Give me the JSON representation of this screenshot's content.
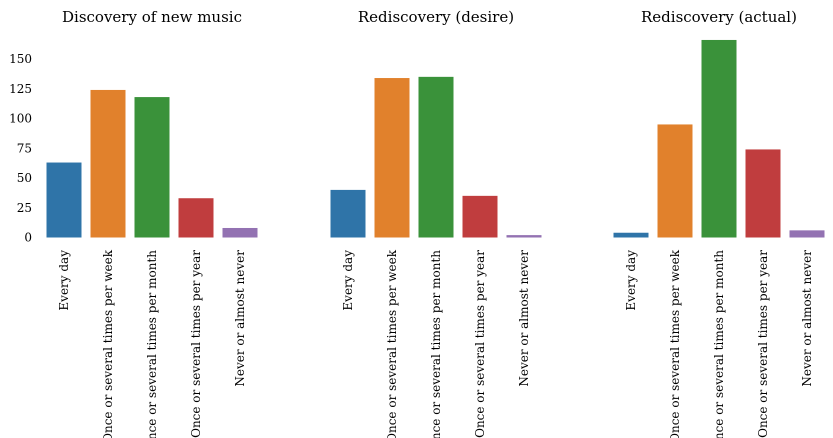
{
  "chart_data": [
    {
      "type": "bar",
      "title": "Discovery of new music",
      "categories": [
        "Every day",
        "Once or several times per week",
        "Once or several times per month",
        "Once or several times per year",
        "Never or almost never"
      ],
      "values": [
        63,
        124,
        118,
        33,
        8
      ],
      "ylim": [
        0,
        170
      ],
      "yticks": [
        "0",
        "25",
        "50",
        "75",
        "100",
        "125",
        "150"
      ],
      "xlabel": "",
      "ylabel": "",
      "grid": false
    },
    {
      "type": "bar",
      "title": "Rediscovery (desire)",
      "categories": [
        "Every day",
        "Once or several times per week",
        "Once or several times per month",
        "Once or several times per year",
        "Never or almost never"
      ],
      "values": [
        40,
        134,
        135,
        35,
        2
      ],
      "ylim": [
        0,
        170
      ],
      "xlabel": "",
      "ylabel": "",
      "grid": false
    },
    {
      "type": "bar",
      "title": "Rediscovery (actual)",
      "categories": [
        "Every day",
        "Once or several times per week",
        "Once or several times per month",
        "Once or several times per year",
        "Never or almost never"
      ],
      "values": [
        4,
        95,
        166,
        74,
        6
      ],
      "ylim": [
        0,
        170
      ],
      "xlabel": "",
      "ylabel": "",
      "grid": false
    }
  ],
  "colors": [
    "#2f74a8",
    "#e1812c",
    "#3a923a",
    "#c03d3e",
    "#9372b2"
  ]
}
